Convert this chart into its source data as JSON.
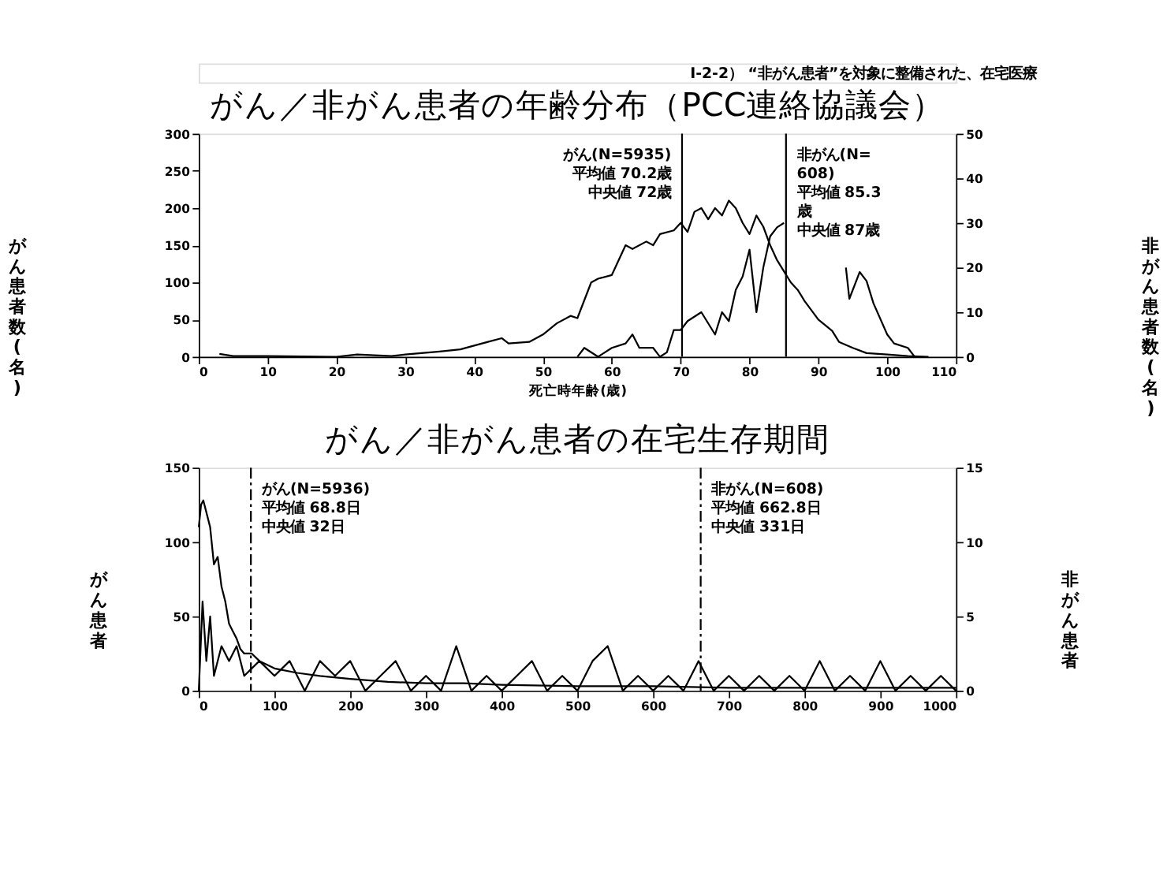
{
  "chart_data": [
    {
      "type": "line",
      "title": "がん／非がん患者の年齢分布（PCC連絡協議会）",
      "xlabel": "死亡時年齢(歳)",
      "ylabel": "がん患者数(名)",
      "y2label": "非がん患者数(名)",
      "annotations": [
        "Ⅰ-2-2） “非がん患者”を対象に整備された、在宅医療"
      ],
      "xlim": [
        0,
        110
      ],
      "xticks": [
        0,
        10,
        20,
        30,
        40,
        50,
        60,
        70,
        80,
        90,
        100,
        110
      ],
      "ylim": [
        0,
        300
      ],
      "yticks": [
        0,
        50,
        100,
        150,
        200,
        250,
        300
      ],
      "y2lim": [
        0,
        50
      ],
      "y2ticks": [
        0,
        10,
        20,
        30,
        40,
        50
      ],
      "grid": false,
      "marker": "none",
      "line_style": "solid",
      "series": [
        {
          "color": "#000000",
          "x": [
            3,
            5,
            10,
            20,
            23,
            28,
            30,
            35,
            38,
            40,
            42,
            44,
            45,
            48,
            50,
            52,
            54,
            55,
            57,
            58,
            60,
            62,
            63,
            65,
            66,
            67,
            69,
            70,
            71,
            72,
            73,
            74,
            75,
            76,
            77,
            78,
            79,
            80,
            81,
            82,
            83,
            84,
            85,
            86,
            87,
            88,
            90,
            92,
            93,
            95,
            97,
            100,
            103,
            106
          ],
          "values": [
            4,
            1,
            1,
            0,
            3,
            1,
            3,
            7,
            10,
            15,
            20,
            25,
            18,
            20,
            30,
            45,
            55,
            52,
            100,
            105,
            110,
            150,
            145,
            155,
            150,
            165,
            170,
            180,
            168,
            195,
            200,
            185,
            200,
            190,
            210,
            200,
            180,
            165,
            190,
            175,
            150,
            130,
            115,
            100,
            90,
            75,
            50,
            35,
            20,
            12,
            5,
            3,
            1,
            0
          ]
        },
        {
          "color": "#000000",
          "axis": "y2",
          "x": [
            55,
            56,
            58,
            60,
            62,
            63,
            64,
            66,
            67,
            68,
            69,
            70,
            71,
            73,
            75,
            76,
            77,
            78,
            79,
            80,
            81,
            82,
            83,
            84,
            85,
            88,
            94,
            94.5,
            96,
            97,
            98,
            100,
            101,
            103,
            104
          ],
          "values": [
            0,
            2,
            0,
            2,
            3,
            5,
            2,
            2,
            0,
            1,
            6,
            6,
            8,
            10,
            5,
            10,
            8,
            15,
            18,
            24,
            10,
            20,
            27,
            29,
            30,
            null,
            20,
            13,
            19,
            17,
            12,
            5,
            3,
            2,
            0
          ]
        }
      ],
      "ref_lines": [
        {
          "axis": "x",
          "value": 70.2,
          "label": "がん(N=5935)平均値 70.2歳中央値 72歳",
          "color": "#000000",
          "line_style": "solid"
        },
        {
          "axis": "x",
          "value": 85.3,
          "label": "非がん(N=608)平均値 85.3歳中央値 87歳",
          "color": "#000000",
          "line_style": "solid"
        }
      ]
    },
    {
      "type": "line",
      "title": "がん／非がん患者の在宅生存期間",
      "ylabel": "がん患者",
      "y2label": "非がん患者",
      "xlim": [
        0,
        1000
      ],
      "xticks": [
        0,
        100,
        200,
        300,
        400,
        500,
        600,
        700,
        800,
        900,
        1000
      ],
      "ylim": [
        0,
        150
      ],
      "yticks": [
        0,
        50,
        100,
        150
      ],
      "y2lim": [
        0,
        15
      ],
      "y2ticks": [
        0,
        5,
        10,
        15
      ],
      "grid": false,
      "marker": "none",
      "line_style": "solid",
      "series": [
        {
          "color": "#000000",
          "x": [
            0,
            3,
            6,
            10,
            15,
            20,
            25,
            30,
            35,
            40,
            45,
            50,
            55,
            60,
            70,
            80,
            100,
            130,
            160,
            200,
            250,
            300,
            350,
            400,
            500,
            600,
            700,
            800,
            900,
            1000
          ],
          "values": [
            110,
            125,
            128,
            120,
            110,
            85,
            90,
            70,
            60,
            45,
            40,
            35,
            28,
            25,
            25,
            20,
            15,
            12,
            10,
            8,
            6,
            5,
            5,
            4,
            3,
            3,
            2,
            2,
            2,
            2
          ]
        },
        {
          "color": "#000000",
          "axis": "y2",
          "x": [
            0,
            5,
            10,
            15,
            20,
            30,
            40,
            50,
            60,
            80,
            100,
            120,
            140,
            160,
            180,
            200,
            220,
            240,
            260,
            280,
            300,
            320,
            340,
            360,
            380,
            400,
            420,
            440,
            460,
            480,
            500,
            520,
            540,
            560,
            580,
            600,
            620,
            640,
            660,
            680,
            700,
            720,
            740,
            760,
            780,
            800,
            820,
            840,
            860,
            880,
            900,
            920,
            940,
            960,
            980,
            1000
          ],
          "values": [
            0,
            6,
            2,
            5,
            1,
            3,
            2,
            3,
            1,
            2,
            1,
            2,
            0,
            2,
            1,
            2,
            0,
            1,
            2,
            0,
            1,
            0,
            3,
            0,
            1,
            0,
            1,
            2,
            0,
            1,
            0,
            2,
            3,
            0,
            1,
            0,
            1,
            0,
            2,
            0,
            1,
            0,
            1,
            0,
            1,
            0,
            2,
            0,
            1,
            0,
            2,
            0,
            1,
            0,
            1,
            0
          ]
        }
      ],
      "ref_lines": [
        {
          "axis": "x",
          "value": 68.8,
          "label": "がん(N=5936)平均値 68.8日中央値 32日",
          "color": "#000000",
          "line_style": "dashed"
        },
        {
          "axis": "x",
          "value": 662.8,
          "label": "非がん(N=608)平均値 662.8日中央値 331日",
          "color": "#000000",
          "line_style": "dashed"
        }
      ]
    }
  ]
}
